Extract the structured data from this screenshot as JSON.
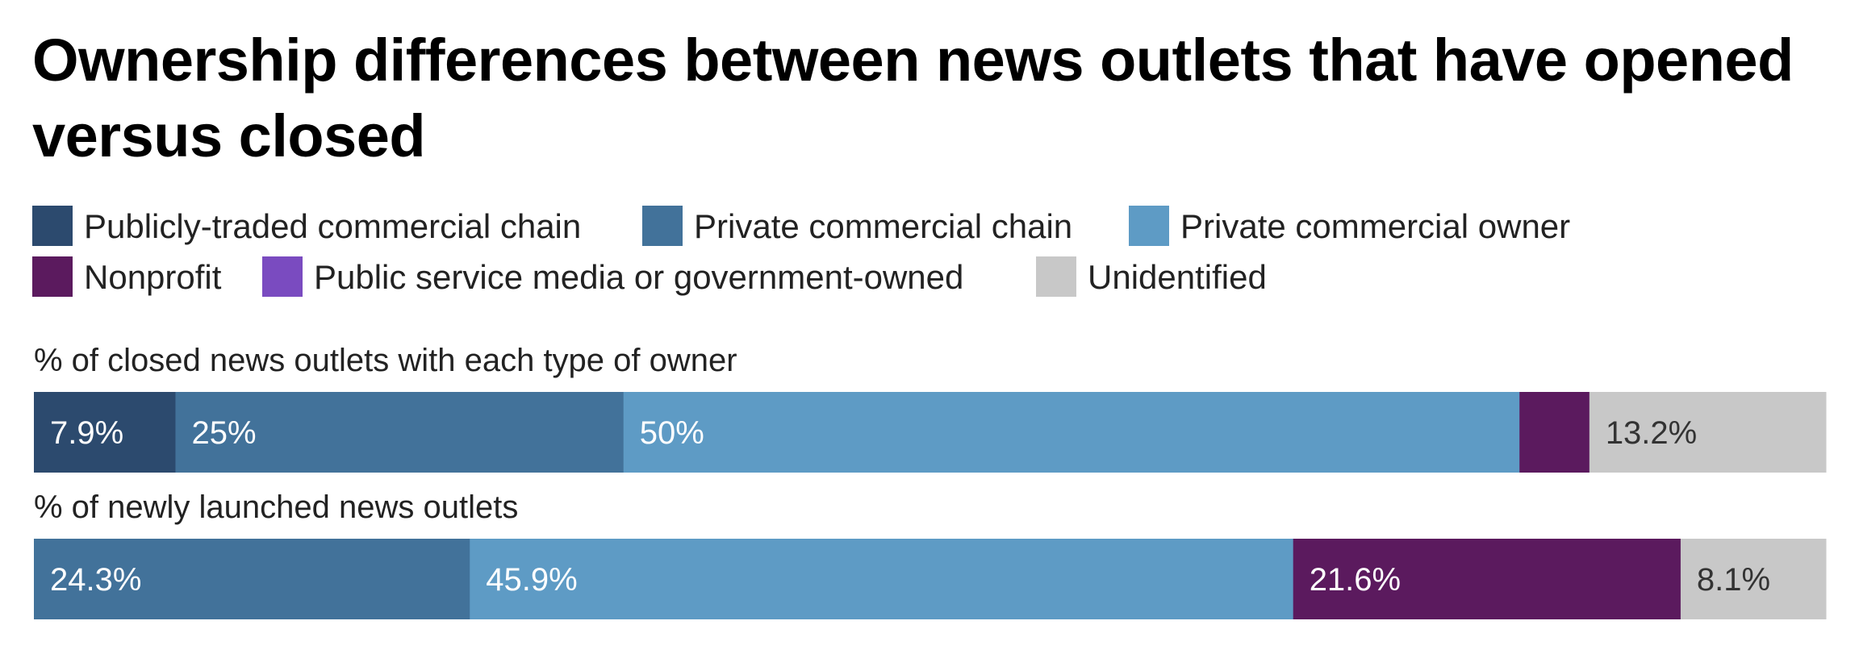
{
  "chart_data": {
    "type": "stacked-bar",
    "title": "Ownership differences between news outlets that have opened versus closed",
    "series": [
      {
        "name": "Publicly-traded commercial chain",
        "color": "#2c4a6e"
      },
      {
        "name": "Private commercial chain",
        "color": "#42729a"
      },
      {
        "name": "Private commercial owner",
        "color": "#5e9bc5"
      },
      {
        "name": "Nonprofit",
        "color": "#5b1a5e"
      },
      {
        "name": "Public service media or government-owned",
        "color": "#7a4bc0"
      },
      {
        "name": "Unidentified",
        "color": "#c8c8c8"
      }
    ],
    "rows": [
      {
        "label": "% of closed news outlets with each type of owner",
        "values": [
          7.9,
          25,
          50,
          3.9,
          0,
          13.2
        ],
        "value_labels": [
          "7.9%",
          "25%",
          "50%",
          "",
          "",
          "13.2%"
        ]
      },
      {
        "label": "% of newly launched news outlets",
        "values": [
          0,
          24.3,
          45.9,
          21.6,
          0,
          8.1
        ],
        "value_labels": [
          "",
          "24.3%",
          "45.9%",
          "21.6%",
          "",
          "8.1%"
        ]
      }
    ],
    "label_colors": {
      "light": "#ffffff",
      "dark": "#333333"
    }
  }
}
